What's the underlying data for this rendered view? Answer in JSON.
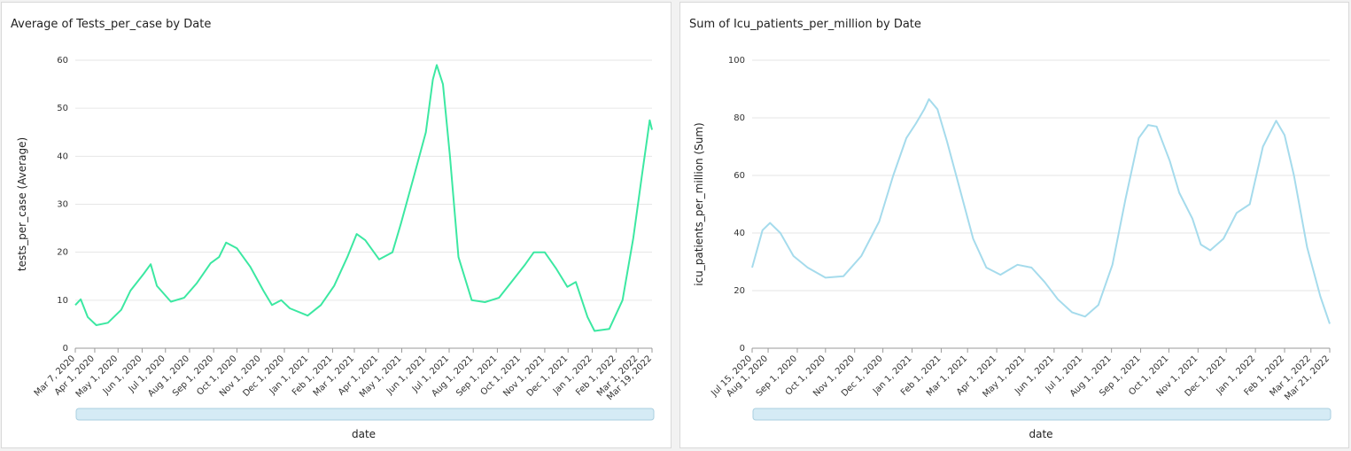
{
  "chart_data": [
    {
      "type": "line",
      "title": "Average of Tests_per_case by Date",
      "x_label": "date",
      "y_label": "tests_per_case (Average)",
      "color": "#3ce8a2",
      "grid": true,
      "xlim": [
        "2020-03-07",
        "2022-03-19"
      ],
      "ylim": [
        0,
        60
      ],
      "yticks": [
        0,
        10,
        20,
        30,
        40,
        50,
        60
      ],
      "xticks": [
        {
          "value": "2020-03-07",
          "label": "Mar 7, 2020"
        },
        {
          "value": "2020-04-01",
          "label": "Apr 1, 2020"
        },
        {
          "value": "2020-05-01",
          "label": "May 1, 2020"
        },
        {
          "value": "2020-06-01",
          "label": "Jun 1, 2020"
        },
        {
          "value": "2020-07-01",
          "label": "Jul 1, 2020"
        },
        {
          "value": "2020-08-01",
          "label": "Aug 1, 2020"
        },
        {
          "value": "2020-09-01",
          "label": "Sep 1, 2020"
        },
        {
          "value": "2020-10-01",
          "label": "Oct 1, 2020"
        },
        {
          "value": "2020-11-01",
          "label": "Nov 1, 2020"
        },
        {
          "value": "2020-12-01",
          "label": "Dec 1, 2020"
        },
        {
          "value": "2021-01-01",
          "label": "Jan 1, 2021"
        },
        {
          "value": "2021-02-01",
          "label": "Feb 1, 2021"
        },
        {
          "value": "2021-03-01",
          "label": "Mar 1, 2021"
        },
        {
          "value": "2021-04-01",
          "label": "Apr 1, 2021"
        },
        {
          "value": "2021-05-01",
          "label": "May 1, 2021"
        },
        {
          "value": "2021-06-01",
          "label": "Jun 1, 2021"
        },
        {
          "value": "2021-07-01",
          "label": "Jul 1, 2021"
        },
        {
          "value": "2021-08-01",
          "label": "Aug 1, 2021"
        },
        {
          "value": "2021-09-01",
          "label": "Sep 1, 2021"
        },
        {
          "value": "2021-10-01",
          "label": "Oct 1, 2021"
        },
        {
          "value": "2021-11-01",
          "label": "Nov 1, 2021"
        },
        {
          "value": "2021-12-01",
          "label": "Dec 1, 2021"
        },
        {
          "value": "2022-01-01",
          "label": "Jan 1, 2022"
        },
        {
          "value": "2022-02-01",
          "label": "Feb 1, 2022"
        },
        {
          "value": "2022-03-01",
          "label": "Mar 1, 2022"
        },
        {
          "value": "2022-03-19",
          "label": "Mar 19, 2022"
        }
      ],
      "x": [
        "2020-03-07",
        "2020-03-14",
        "2020-03-23",
        "2020-04-03",
        "2020-04-18",
        "2020-05-05",
        "2020-05-17",
        "2020-06-03",
        "2020-06-12",
        "2020-06-20",
        "2020-07-08",
        "2020-07-25",
        "2020-08-10",
        "2020-08-28",
        "2020-09-08",
        "2020-09-17",
        "2020-10-01",
        "2020-10-18",
        "2020-11-04",
        "2020-11-15",
        "2020-11-27",
        "2020-12-08",
        "2020-12-31",
        "2021-01-17",
        "2021-02-03",
        "2021-02-20",
        "2021-03-04",
        "2021-03-15",
        "2021-04-02",
        "2021-04-19",
        "2021-04-30",
        "2021-05-17",
        "2021-06-01",
        "2021-06-10",
        "2021-06-15",
        "2021-06-23",
        "2021-07-02",
        "2021-07-13",
        "2021-07-30",
        "2021-08-16",
        "2021-09-03",
        "2021-09-20",
        "2021-10-07",
        "2021-10-18",
        "2021-11-01",
        "2021-11-16",
        "2021-11-30",
        "2021-12-11",
        "2021-12-26",
        "2022-01-04",
        "2022-01-23",
        "2022-02-09",
        "2022-02-23",
        "2022-03-06",
        "2022-03-16",
        "2022-03-19"
      ],
      "values": [
        9,
        10.2,
        6.5,
        4.8,
        5.3,
        8,
        12,
        15.5,
        17.5,
        13,
        9.7,
        10.5,
        13.5,
        17.7,
        19,
        22,
        20.8,
        17,
        12,
        9,
        10,
        8.3,
        6.8,
        9,
        13,
        19,
        23.8,
        22.5,
        18.5,
        20,
        26,
        36,
        45,
        56,
        59,
        55,
        40,
        19,
        10,
        9.6,
        10.5,
        14,
        17.5,
        20,
        20,
        16.5,
        12.8,
        13.8,
        6.5,
        3.6,
        4,
        10,
        23,
        36,
        47.5,
        45.5
      ]
    },
    {
      "type": "line",
      "title": "Sum of Icu_patients_per_million by Date",
      "x_label": "date",
      "y_label": "icu_patients_per_million (Sum)",
      "color": "#a5dbec",
      "grid": true,
      "xlim": [
        "2020-07-15",
        "2022-03-21"
      ],
      "ylim": [
        0,
        100
      ],
      "yticks": [
        0,
        20,
        40,
        60,
        80,
        100
      ],
      "xticks": [
        {
          "value": "2020-07-15",
          "label": "Jul 15, 2020"
        },
        {
          "value": "2020-08-01",
          "label": "Aug 1, 2020"
        },
        {
          "value": "2020-09-01",
          "label": "Sep 1, 2020"
        },
        {
          "value": "2020-10-01",
          "label": "Oct 1, 2020"
        },
        {
          "value": "2020-11-01",
          "label": "Nov 1, 2020"
        },
        {
          "value": "2020-12-01",
          "label": "Dec 1, 2020"
        },
        {
          "value": "2021-01-01",
          "label": "Jan 1, 2021"
        },
        {
          "value": "2021-02-01",
          "label": "Feb 1, 2021"
        },
        {
          "value": "2021-03-01",
          "label": "Mar 1, 2021"
        },
        {
          "value": "2021-04-01",
          "label": "Apr 1, 2021"
        },
        {
          "value": "2021-05-01",
          "label": "May 1, 2021"
        },
        {
          "value": "2021-06-01",
          "label": "Jun 1, 2021"
        },
        {
          "value": "2021-07-01",
          "label": "Jul 1, 2021"
        },
        {
          "value": "2021-08-01",
          "label": "Aug 1, 2021"
        },
        {
          "value": "2021-09-01",
          "label": "Sep 1, 2021"
        },
        {
          "value": "2021-10-01",
          "label": "Oct 1, 2021"
        },
        {
          "value": "2021-11-01",
          "label": "Nov 1, 2021"
        },
        {
          "value": "2021-12-01",
          "label": "Dec 1, 2021"
        },
        {
          "value": "2022-01-01",
          "label": "Jan 1, 2022"
        },
        {
          "value": "2022-02-01",
          "label": "Feb 1, 2022"
        },
        {
          "value": "2022-03-01",
          "label": "Mar 1, 2022"
        },
        {
          "value": "2022-03-21",
          "label": "Mar 21, 2022"
        }
      ],
      "x": [
        "2020-07-15",
        "2020-07-26",
        "2020-08-03",
        "2020-08-14",
        "2020-08-28",
        "2020-09-12",
        "2020-10-01",
        "2020-10-20",
        "2020-11-08",
        "2020-11-27",
        "2020-12-12",
        "2020-12-26",
        "2021-01-05",
        "2021-01-14",
        "2021-01-19",
        "2021-01-28",
        "2021-02-07",
        "2021-02-21",
        "2021-03-07",
        "2021-03-21",
        "2021-04-05",
        "2021-04-23",
        "2021-05-08",
        "2021-05-22",
        "2021-06-05",
        "2021-06-20",
        "2021-07-04",
        "2021-07-18",
        "2021-08-02",
        "2021-08-16",
        "2021-08-30",
        "2021-09-09",
        "2021-09-18",
        "2021-10-02",
        "2021-10-12",
        "2021-10-26",
        "2021-11-04",
        "2021-11-14",
        "2021-11-28",
        "2021-12-12",
        "2021-12-26",
        "2022-01-09",
        "2022-01-23",
        "2022-02-01",
        "2022-02-11",
        "2022-02-25",
        "2022-03-11",
        "2022-03-21"
      ],
      "values": [
        28,
        41,
        43.5,
        40,
        32,
        28,
        24.5,
        25,
        32,
        44,
        60,
        73,
        78,
        83,
        86.5,
        83,
        72,
        55,
        38,
        28,
        25.5,
        29,
        28,
        23,
        17,
        12.5,
        11,
        15,
        29,
        52,
        73,
        77.5,
        77,
        65,
        54,
        45,
        36,
        34,
        38,
        47,
        50,
        70,
        79,
        74,
        60,
        35,
        18,
        8.5
      ]
    }
  ]
}
